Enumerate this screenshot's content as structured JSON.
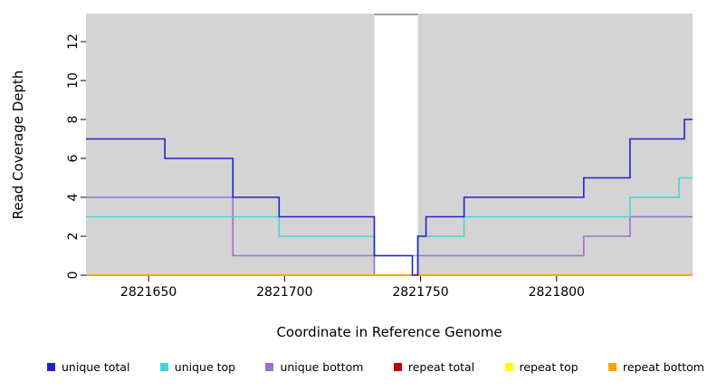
{
  "chart_data": {
    "type": "line",
    "subtype": "step-coverage",
    "title": "",
    "xlabel": "Coordinate in Reference Genome",
    "ylabel": "Read Coverage Depth",
    "xlim": [
      2821627,
      2821850
    ],
    "ylim": [
      0,
      13.4
    ],
    "x_ticks": [
      2821650,
      2821700,
      2821750,
      2821800
    ],
    "y_ticks": [
      0,
      2,
      4,
      6,
      8,
      10,
      12
    ],
    "panel_bg": "#d4d4d4",
    "gap_region": {
      "x0": 2821733,
      "x1": 2821749,
      "top_line_color": "#808080"
    },
    "series": [
      {
        "name": "unique total",
        "color": "#2222cc",
        "points": [
          [
            2821627,
            7
          ],
          [
            2821656,
            6
          ],
          [
            2821681,
            4
          ],
          [
            2821698,
            3
          ],
          [
            2821733,
            1
          ],
          [
            2821747,
            0
          ],
          [
            2821749,
            2
          ],
          [
            2821752,
            3
          ],
          [
            2821766,
            4
          ],
          [
            2821810,
            5
          ],
          [
            2821827,
            7
          ],
          [
            2821847,
            8
          ]
        ],
        "xend": 2821850
      },
      {
        "name": "unique top",
        "color": "#45d4d4",
        "points": [
          [
            2821627,
            3
          ],
          [
            2821698,
            2
          ],
          [
            2821733,
            1
          ],
          [
            2821749,
            2
          ],
          [
            2821766,
            3
          ],
          [
            2821827,
            4
          ],
          [
            2821845,
            5
          ]
        ],
        "xend": 2821850
      },
      {
        "name": "unique bottom",
        "color": "#9a6fd0",
        "points": [
          [
            2821627,
            4
          ],
          [
            2821681,
            1
          ],
          [
            2821733,
            0
          ],
          [
            2821749,
            1
          ],
          [
            2821810,
            2
          ],
          [
            2821827,
            3
          ]
        ],
        "xend": 2821850
      },
      {
        "name": "repeat total",
        "color": "#c00000",
        "points": [
          [
            2821627,
            0
          ]
        ],
        "xend": 2821850
      },
      {
        "name": "repeat top",
        "color": "#ffff00",
        "points": [
          [
            2821627,
            0
          ]
        ],
        "xend": 2821850
      },
      {
        "name": "repeat bottom",
        "color": "#ffa500",
        "points": [
          [
            2821627,
            0
          ]
        ],
        "xend": 2821850
      }
    ],
    "draw_order": [
      "unique bottom",
      "unique top",
      "repeat total",
      "repeat top",
      "repeat bottom",
      "unique total"
    ],
    "legend": [
      {
        "label": "unique total",
        "color": "#2222cc"
      },
      {
        "label": "unique top",
        "color": "#45d4d4"
      },
      {
        "label": "unique bottom",
        "color": "#9a6fd0"
      },
      {
        "label": "repeat total",
        "color": "#c00000"
      },
      {
        "label": "repeat top",
        "color": "#ffff00"
      },
      {
        "label": "repeat bottom",
        "color": "#ffa500"
      }
    ],
    "legend_position": "bottom",
    "grid": false
  }
}
